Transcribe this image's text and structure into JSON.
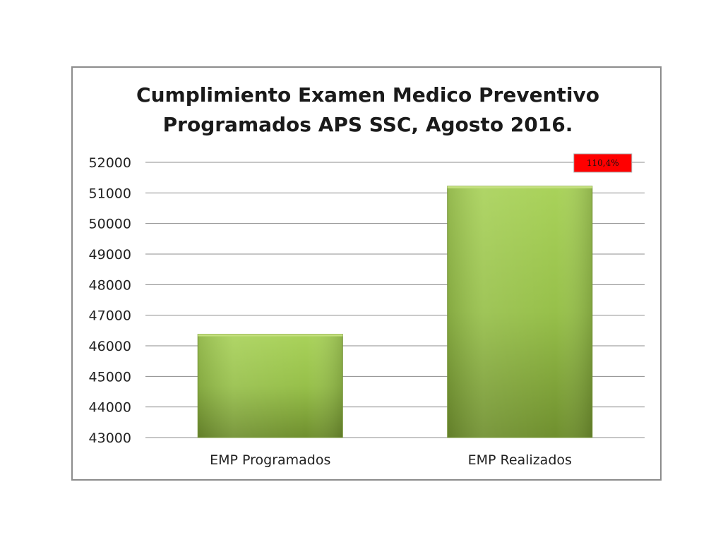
{
  "chart_data": {
    "type": "bar",
    "title_lines": [
      "Cumplimiento Examen Medico Preventivo",
      "Programados APS SSC, Agosto 2016."
    ],
    "categories": [
      "EMP Programados",
      "EMP Realizados"
    ],
    "values": [
      46380,
      51220
    ],
    "ylim": [
      43000,
      52000
    ],
    "yticks": [
      43000,
      44000,
      45000,
      46000,
      47000,
      48000,
      49000,
      50000,
      51000,
      52000
    ],
    "grid": true,
    "legend": "none",
    "annotation": {
      "text": "110,4%",
      "category_index": 1,
      "background": "#ff0000"
    },
    "colors": {
      "bar_top": "#a9d25a",
      "bar_bottom": "#6f8f2e",
      "grid": "#8c8c8c"
    }
  }
}
